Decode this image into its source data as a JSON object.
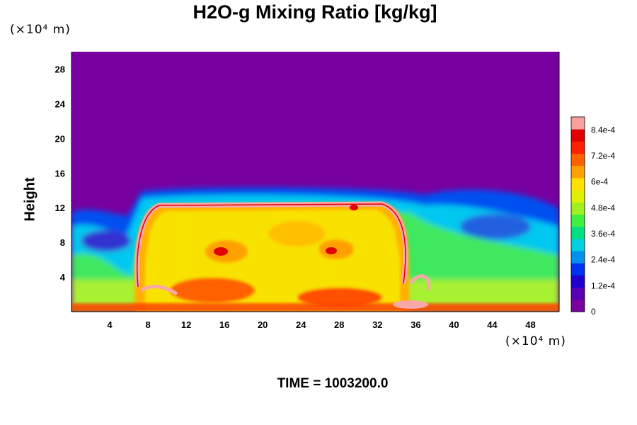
{
  "title": "H2O-g Mixing Ratio [kg/kg]",
  "y_unit": "(×10⁴ m)",
  "x_unit": "(×10⁴ m)",
  "ylabel": "Height",
  "time_label": "TIME = 1003200.0",
  "colors": {
    "background": "#7700a0",
    "colormap": [
      "#7a00a0",
      "#5a00b4",
      "#2000d0",
      "#0030f0",
      "#0090f0",
      "#00d0e0",
      "#00e080",
      "#40f040",
      "#a0f020",
      "#e0f000",
      "#ffe000",
      "#ffa000",
      "#ff6000",
      "#ff2000",
      "#e00000",
      "#f8a0a0"
    ]
  },
  "chart_data": {
    "type": "heatmap",
    "title": "H2O-g Mixing Ratio [kg/kg]",
    "xlabel": "",
    "ylabel": "Height",
    "x_unit": "(×10⁴ m)",
    "y_unit": "(×10⁴ m)",
    "xlim": [
      0,
      51
    ],
    "ylim": [
      0,
      30
    ],
    "x_ticks": [
      "4",
      "8",
      "12",
      "16",
      "20",
      "24",
      "28",
      "32",
      "36",
      "40",
      "44",
      "48"
    ],
    "y_ticks": [
      "4",
      "8",
      "12",
      "16",
      "20",
      "24",
      "28"
    ],
    "colorbar": {
      "min": 0,
      "max": 0.0009,
      "tick_labels": [
        "0",
        "1.2e-4",
        "2.4e-4",
        "3.6e-4",
        "4.8e-4",
        "6e-4",
        "7.2e-4",
        "8.4e-4"
      ],
      "tick_values": [
        0,
        0.00012,
        0.00024,
        0.00036,
        0.00048,
        0.0006,
        0.00072,
        0.00084
      ]
    },
    "features": [
      {
        "name": "moist-dome",
        "x_range": [
          6.5,
          35.5
        ],
        "top_height": 12.5,
        "value_range": [
          0.0005,
          0.00075
        ]
      },
      {
        "name": "dome-edge-maximum",
        "value": 0.0009
      },
      {
        "name": "upper-dry-layer",
        "height_range": [
          14,
          30
        ],
        "value": 0.0
      }
    ]
  }
}
